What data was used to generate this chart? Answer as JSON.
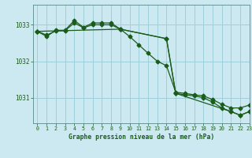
{
  "title": "Graphe pression niveau de la mer (hPa)",
  "background_color": "#cce8f0",
  "grid_color": "#9ecfdb",
  "line_color": "#1a5c1a",
  "xlim": [
    -0.5,
    23
  ],
  "ylim": [
    1030.3,
    1033.55
  ],
  "yticks": [
    1031,
    1032,
    1033
  ],
  "xticks": [
    0,
    1,
    2,
    3,
    4,
    5,
    6,
    7,
    8,
    9,
    10,
    11,
    12,
    13,
    14,
    15,
    16,
    17,
    18,
    19,
    20,
    21,
    22,
    23
  ],
  "series1_x": [
    0,
    1,
    2,
    3,
    4,
    5,
    6,
    7,
    8,
    9,
    10,
    11,
    12,
    13,
    14,
    15,
    16,
    17,
    18,
    19,
    20,
    21,
    22,
    23
  ],
  "series1_y": [
    1032.82,
    1032.72,
    1032.83,
    1032.84,
    1033.05,
    1032.92,
    1033.0,
    1033.0,
    1033.0,
    1032.88,
    1032.68,
    1032.45,
    1032.22,
    1032.0,
    1031.88,
    1031.15,
    1031.12,
    1031.08,
    1031.05,
    1030.95,
    1030.82,
    1030.72,
    1030.72,
    1030.8
  ],
  "series2_x": [
    0,
    1,
    2,
    3,
    4,
    5,
    6,
    7,
    8,
    9,
    14,
    15,
    16,
    17,
    18,
    19,
    20,
    21,
    22,
    23
  ],
  "series2_y": [
    1032.82,
    1032.68,
    1032.85,
    1032.85,
    1033.12,
    1032.93,
    1033.05,
    1033.05,
    1033.05,
    1032.88,
    1032.62,
    1031.12,
    1031.08,
    1031.05,
    1031.0,
    1030.88,
    1030.72,
    1030.62,
    1030.52,
    1030.62
  ],
  "series3_x": [
    0,
    9,
    14,
    15,
    21,
    22,
    23
  ],
  "series3_y": [
    1032.82,
    1032.88,
    1032.62,
    1031.12,
    1030.62,
    1030.52,
    1030.62
  ]
}
